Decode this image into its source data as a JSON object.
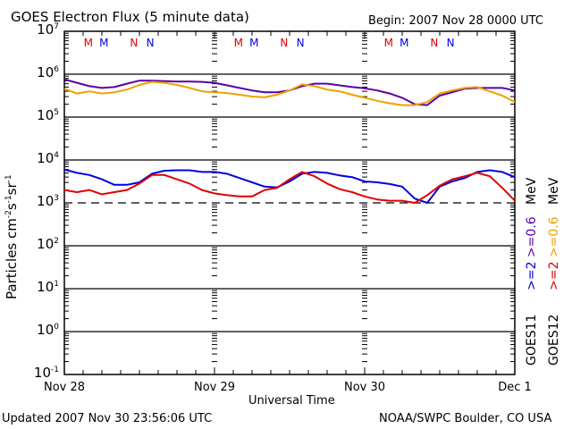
{
  "chart_data": {
    "type": "line",
    "title": "GOES Electron Flux (5 minute data)",
    "begin_label": "Begin: 2007 Nov 28 0000 UTC",
    "xlabel": "Universal Time",
    "ylabel_parts": [
      "Particles cm",
      "-2",
      "s",
      "-1",
      "sr",
      "-1"
    ],
    "yscale": "log",
    "ylim_log10": [
      -1,
      7
    ],
    "y_ticks": [
      {
        "base": "10",
        "exp": "7",
        "log": 7
      },
      {
        "base": "10",
        "exp": "6",
        "log": 6
      },
      {
        "base": "10",
        "exp": "5",
        "log": 5
      },
      {
        "base": "10",
        "exp": "4",
        "log": 4
      },
      {
        "base": "10",
        "exp": "3",
        "log": 3
      },
      {
        "base": "10",
        "exp": "2",
        "log": 2
      },
      {
        "base": "10",
        "exp": "1",
        "log": 1
      },
      {
        "base": "10",
        "exp": "0",
        "log": 0
      },
      {
        "base": "10",
        "exp": "-1",
        "log": -1
      }
    ],
    "x_hours_range": [
      0,
      72
    ],
    "x_ticks": [
      {
        "label": "Nov 28",
        "hour": 0
      },
      {
        "label": "Nov 29",
        "hour": 24
      },
      {
        "label": "Nov 30",
        "hour": 48
      },
      {
        "label": "Dec 1",
        "hour": 72
      }
    ],
    "threshold_log10": 3,
    "markers": [
      {
        "label": "M",
        "hour": 3.8,
        "color": "#e00000"
      },
      {
        "label": "M",
        "hour": 6.3,
        "color": "#0000e0"
      },
      {
        "label": "N",
        "hour": 11.2,
        "color": "#e00000"
      },
      {
        "label": "N",
        "hour": 13.8,
        "color": "#0000e0"
      },
      {
        "label": "M",
        "hour": 27.8,
        "color": "#e00000"
      },
      {
        "label": "M",
        "hour": 30.3,
        "color": "#0000e0"
      },
      {
        "label": "N",
        "hour": 35.2,
        "color": "#e00000"
      },
      {
        "label": "N",
        "hour": 37.8,
        "color": "#0000e0"
      },
      {
        "label": "M",
        "hour": 51.8,
        "color": "#e00000"
      },
      {
        "label": "M",
        "hour": 54.3,
        "color": "#0000e0"
      },
      {
        "label": "N",
        "hour": 59.2,
        "color": "#e00000"
      },
      {
        "label": "N",
        "hour": 61.8,
        "color": "#0000e0"
      }
    ],
    "x_hours": [
      0,
      2,
      4,
      6,
      8,
      10,
      12,
      14,
      16,
      18,
      20,
      22,
      24,
      26,
      28,
      30,
      32,
      34,
      36,
      38,
      40,
      42,
      44,
      46,
      48,
      50,
      52,
      54,
      56,
      58,
      60,
      62,
      64,
      66,
      68,
      70,
      72
    ],
    "series": [
      {
        "name": "GOES11 >=0.6 MeV",
        "color": "#5a00a8",
        "values": [
          5.88,
          5.8,
          5.72,
          5.68,
          5.7,
          5.78,
          5.85,
          5.85,
          5.84,
          5.83,
          5.83,
          5.82,
          5.8,
          5.74,
          5.68,
          5.62,
          5.58,
          5.58,
          5.62,
          5.72,
          5.78,
          5.78,
          5.74,
          5.7,
          5.67,
          5.62,
          5.55,
          5.45,
          5.3,
          5.28,
          5.5,
          5.58,
          5.66,
          5.68,
          5.68,
          5.68,
          5.62
        ]
      },
      {
        "name": "GOES12 >=0.6 MeV",
        "color": "#f0a000",
        "values": [
          5.66,
          5.55,
          5.6,
          5.55,
          5.58,
          5.64,
          5.75,
          5.82,
          5.8,
          5.75,
          5.68,
          5.6,
          5.58,
          5.56,
          5.52,
          5.48,
          5.46,
          5.52,
          5.62,
          5.76,
          5.72,
          5.64,
          5.6,
          5.52,
          5.45,
          5.38,
          5.32,
          5.28,
          5.28,
          5.35,
          5.55,
          5.62,
          5.68,
          5.7,
          5.6,
          5.5,
          5.35
        ]
      },
      {
        "name": "GOES11 >=2 MeV",
        "color": "#0000e0",
        "values": [
          3.78,
          3.7,
          3.65,
          3.55,
          3.42,
          3.42,
          3.48,
          3.68,
          3.75,
          3.76,
          3.76,
          3.72,
          3.72,
          3.68,
          3.58,
          3.48,
          3.38,
          3.36,
          3.5,
          3.68,
          3.72,
          3.7,
          3.64,
          3.6,
          3.5,
          3.48,
          3.44,
          3.38,
          3.1,
          3.0,
          3.38,
          3.5,
          3.58,
          3.72,
          3.76,
          3.72,
          3.6
        ]
      },
      {
        "name": "GOES12 >=2 MeV",
        "color": "#e00000",
        "values": [
          3.3,
          3.25,
          3.3,
          3.2,
          3.25,
          3.3,
          3.45,
          3.65,
          3.65,
          3.55,
          3.45,
          3.3,
          3.22,
          3.18,
          3.15,
          3.15,
          3.3,
          3.35,
          3.55,
          3.72,
          3.62,
          3.45,
          3.32,
          3.25,
          3.15,
          3.08,
          3.05,
          3.05,
          3.0,
          3.18,
          3.4,
          3.55,
          3.62,
          3.7,
          3.62,
          3.35,
          3.05
        ]
      }
    ],
    "legend": [
      {
        "line1": "GOES11",
        "line2a": ">=2",
        "line2a_color": "#0000e0",
        "line2b": ">=0.6",
        "line2b_color": "#5a00a8",
        "unit": "MeV"
      },
      {
        "line1": "GOES12",
        "line2a": ">=2",
        "line2a_color": "#e00000",
        "line2b": ">=0.6",
        "line2b_color": "#f0a000",
        "unit": "MeV"
      }
    ]
  },
  "footer": {
    "updated": "Updated 2007 Nov 30 23:56:06 UTC",
    "credit": "NOAA/SWPC Boulder, CO USA"
  }
}
